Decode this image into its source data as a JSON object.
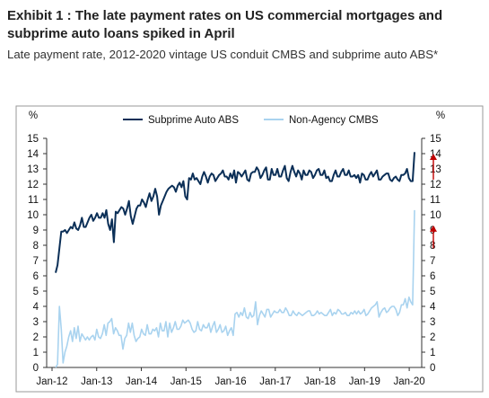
{
  "exhibit": {
    "title_line1": "Exhibit 1 : The late payment rates on US commercial mortgages and",
    "title_line2": "subprime auto loans spiked in April",
    "subtitle": "Late payment rate, 2012-2020 vintage US conduit CMBS and subprime auto ABS*"
  },
  "chart_data": {
    "type": "line",
    "title": "",
    "xlabel": "",
    "ylabel": "%",
    "y2label": "%",
    "ylim": [
      0,
      15
    ],
    "y2lim": [
      0,
      15
    ],
    "yticks": [
      "0",
      "1",
      "2",
      "3",
      "4",
      "5",
      "6",
      "7",
      "8",
      "9",
      "10",
      "11",
      "12",
      "13",
      "14",
      "15"
    ],
    "xticks": [
      "Jan-12",
      "Jan-13",
      "Jan-14",
      "Jan-15",
      "Jan-16",
      "Jan-17",
      "Jan-18",
      "Jan-19",
      "Jan-20"
    ],
    "legend_position": "top-center",
    "grid": false,
    "x_start": "2012-01",
    "x_end": "2020-04",
    "series": [
      {
        "name": "Subprime Auto ABS",
        "color": "#0b2f57",
        "values": [
          6.2,
          6.7,
          7.8,
          8.9,
          8.9,
          9.0,
          8.8,
          9.0,
          9.2,
          9.1,
          9.5,
          9.1,
          9.0,
          9.3,
          9.8,
          9.2,
          9.2,
          9.5,
          9.8,
          10.0,
          9.6,
          9.8,
          10.1,
          9.8,
          9.8,
          10.1,
          9.8,
          10.3,
          9.4,
          9.0,
          9.7,
          8.2,
          10.2,
          10.1,
          10.3,
          10.5,
          10.4,
          10.0,
          10.4,
          10.9,
          9.9,
          9.4,
          9.9,
          10.4,
          10.6,
          10.6,
          11.0,
          10.8,
          10.5,
          11.0,
          11.4,
          10.9,
          11.2,
          11.7,
          11.2,
          10.0,
          10.6,
          10.9,
          11.2,
          11.5,
          11.7,
          11.8,
          11.9,
          11.8,
          11.5,
          11.9,
          12.1,
          11.8,
          12.2,
          11.2,
          11.0,
          12.4,
          12.3,
          12.7,
          12.3,
          12.4,
          12.2,
          12.0,
          12.5,
          12.8,
          12.5,
          12.1,
          12.5,
          12.7,
          12.6,
          12.2,
          12.4,
          12.6,
          12.7,
          12.9,
          12.5,
          12.5,
          12.3,
          12.7,
          12.4,
          12.9,
          12.1,
          12.8,
          12.7,
          12.5,
          12.7,
          12.9,
          12.3,
          12.2,
          12.7,
          12.8,
          12.8,
          13.1,
          12.9,
          12.4,
          12.6,
          12.9,
          13.1,
          12.3,
          12.3,
          13.0,
          12.6,
          12.6,
          13.0,
          12.5,
          12.5,
          12.9,
          13.2,
          12.4,
          12.2,
          12.8,
          13.2,
          12.8,
          12.5,
          12.9,
          12.7,
          12.3,
          12.9,
          12.6,
          12.6,
          12.9,
          12.8,
          12.4,
          12.6,
          12.9,
          13.0,
          12.6,
          12.6,
          12.9,
          12.4,
          12.5,
          12.2,
          12.2,
          12.6,
          12.9,
          12.5,
          12.5,
          12.8,
          13.0,
          12.6,
          12.6,
          12.9,
          12.5,
          12.5,
          12.6,
          12.4,
          12.6,
          12.1,
          12.7,
          12.6,
          12.3,
          12.3,
          12.6,
          12.8,
          12.5,
          12.7,
          12.9,
          12.3,
          12.3,
          12.5,
          12.6,
          12.7,
          12.7,
          12.3,
          12.2,
          12.4,
          12.5,
          12.3,
          12.2,
          12.6,
          12.6,
          12.7,
          13.0,
          12.4,
          12.2,
          12.2,
          14.1
        ]
      },
      {
        "name": "Non-Agency CMBS",
        "color": "#a9d3ef",
        "values": [
          0.0,
          0.2,
          4.0,
          2.5,
          0.3,
          1.0,
          1.4,
          2.0,
          2.4,
          1.7,
          2.6,
          1.9,
          2.7,
          1.7,
          2.2,
          2.0,
          1.8,
          2.0,
          1.8,
          2.0,
          2.1,
          1.8,
          2.5,
          2.0,
          1.9,
          2.2,
          2.8,
          2.1,
          2.9,
          3.0,
          3.2,
          2.2,
          2.6,
          2.4,
          2.1,
          2.1,
          1.2,
          1.9,
          2.1,
          2.9,
          2.3,
          2.9,
          2.1,
          1.7,
          1.9,
          2.0,
          2.5,
          2.2,
          2.1,
          2.8,
          2.2,
          2.2,
          2.5,
          2.4,
          2.6,
          2.0,
          2.9,
          2.4,
          2.4,
          3.0,
          2.0,
          2.9,
          2.3,
          2.6,
          3.0,
          2.5,
          2.5,
          2.7,
          3.1,
          2.9,
          3.0,
          3.1,
          2.9,
          2.5,
          2.3,
          2.4,
          3.0,
          2.5,
          2.4,
          2.8,
          2.6,
          2.6,
          2.9,
          2.3,
          2.7,
          3.0,
          2.3,
          2.5,
          2.8,
          2.3,
          2.4,
          2.7,
          2.1,
          2.4,
          2.6,
          2.1,
          3.5,
          3.6,
          3.3,
          3.6,
          3.4,
          3.9,
          3.3,
          3.2,
          3.6,
          3.3,
          3.4,
          4.3,
          2.8,
          3.4,
          3.7,
          3.5,
          3.3,
          3.8,
          3.8,
          3.3,
          3.5,
          3.7,
          3.6,
          3.6,
          3.8,
          3.6,
          3.6,
          3.9,
          3.7,
          3.4,
          3.4,
          3.7,
          3.5,
          3.4,
          3.6,
          3.5,
          3.4,
          3.5,
          3.6,
          3.7,
          3.7,
          3.4,
          3.4,
          3.5,
          3.7,
          3.5,
          3.6,
          3.5,
          3.4,
          3.4,
          3.6,
          3.8,
          3.4,
          3.6,
          3.5,
          3.8,
          3.7,
          3.5,
          3.5,
          3.6,
          3.4,
          3.4,
          3.6,
          3.5,
          3.7,
          3.5,
          3.7,
          3.5,
          3.6,
          3.8,
          3.4,
          3.5,
          3.7,
          3.9,
          4.0,
          4.1,
          4.3,
          3.3,
          3.6,
          3.8,
          3.9,
          3.6,
          3.7,
          3.9,
          4.0,
          4.0,
          3.8,
          3.4,
          3.6,
          4.1,
          4.1,
          4.5,
          3.9,
          4.6,
          4.3,
          4.1,
          10.3
        ]
      }
    ],
    "annotations": [
      "up-arrow-right-axis-14",
      "up-arrow-right-axis-10"
    ]
  }
}
